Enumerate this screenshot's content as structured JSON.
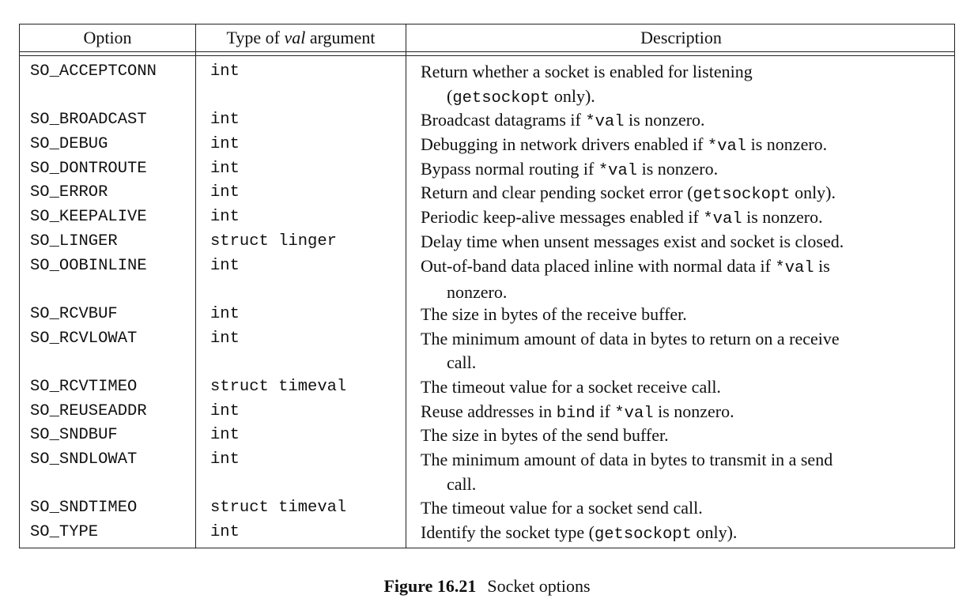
{
  "table": {
    "headers": {
      "option": "Option",
      "type_prefix": "Type of ",
      "type_italic": "val",
      "type_suffix": " argument",
      "description": "Description"
    },
    "rows": [
      {
        "option": "SO_ACCEPTCONN",
        "type": "int",
        "d1": "Return whether a socket is enabled for listening",
        "d1_code": "",
        "d1_tail": "",
        "d2_pre": "(",
        "d2_code": "getsockopt",
        "d2_tail": " only)."
      },
      {
        "option": "SO_BROADCAST",
        "type": "int",
        "d1": "Broadcast datagrams if ",
        "d1_code": "*val",
        "d1_tail": " is nonzero."
      },
      {
        "option": "SO_DEBUG",
        "type": "int",
        "d1": "Debugging in network drivers enabled if ",
        "d1_code": "*val",
        "d1_tail": " is nonzero."
      },
      {
        "option": "SO_DONTROUTE",
        "type": "int",
        "d1": "Bypass normal routing if ",
        "d1_code": "*val",
        "d1_tail": " is nonzero."
      },
      {
        "option": "SO_ERROR",
        "type": "int",
        "d1": "Return and clear pending socket error (",
        "d1_code": "getsockopt",
        "d1_tail": " only)."
      },
      {
        "option": "SO_KEEPALIVE",
        "type": "int",
        "d1": "Periodic keep-alive messages enabled if ",
        "d1_code": "*val",
        "d1_tail": " is nonzero."
      },
      {
        "option": "SO_LINGER",
        "type": "struct linger",
        "d1": "Delay time when unsent messages exist and socket is closed.",
        "d1_code": "",
        "d1_tail": ""
      },
      {
        "option": "SO_OOBINLINE",
        "type": "int",
        "d1": "Out-of-band data placed inline with normal data if ",
        "d1_code": "*val",
        "d1_tail": " is",
        "d2_pre": "nonzero.",
        "d2_code": "",
        "d2_tail": ""
      },
      {
        "option": "SO_RCVBUF",
        "type": "int",
        "d1": "The size in bytes of the receive buffer.",
        "d1_code": "",
        "d1_tail": ""
      },
      {
        "option": "SO_RCVLOWAT",
        "type": "int",
        "d1": "The minimum amount of data in bytes to return on a receive",
        "d1_code": "",
        "d1_tail": "",
        "d2_pre": "call.",
        "d2_code": "",
        "d2_tail": ""
      },
      {
        "option": "SO_RCVTIMEO",
        "type": "struct timeval",
        "d1": "The timeout value for a socket receive call.",
        "d1_code": "",
        "d1_tail": ""
      },
      {
        "option": "SO_REUSEADDR",
        "type": "int",
        "d1": "Reuse addresses in ",
        "d1_code": "bind",
        "d1_tail": " if ",
        "d1_code2": "*val",
        "d1_tail2": " is nonzero."
      },
      {
        "option": "SO_SNDBUF",
        "type": "int",
        "d1": "The size in bytes of the send buffer.",
        "d1_code": "",
        "d1_tail": ""
      },
      {
        "option": "SO_SNDLOWAT",
        "type": "int",
        "d1": "The minimum amount of data in bytes to transmit in a send",
        "d1_code": "",
        "d1_tail": "",
        "d2_pre": "call.",
        "d2_code": "",
        "d2_tail": ""
      },
      {
        "option": "SO_SNDTIMEO",
        "type": "struct timeval",
        "d1": "The timeout value for a socket send call.",
        "d1_code": "",
        "d1_tail": ""
      },
      {
        "option": "SO_TYPE",
        "type": "int",
        "d1": "Identify the socket type (",
        "d1_code": "getsockopt",
        "d1_tail": " only)."
      }
    ]
  },
  "caption": {
    "figure": "Figure 16.21",
    "text": "Socket options"
  }
}
